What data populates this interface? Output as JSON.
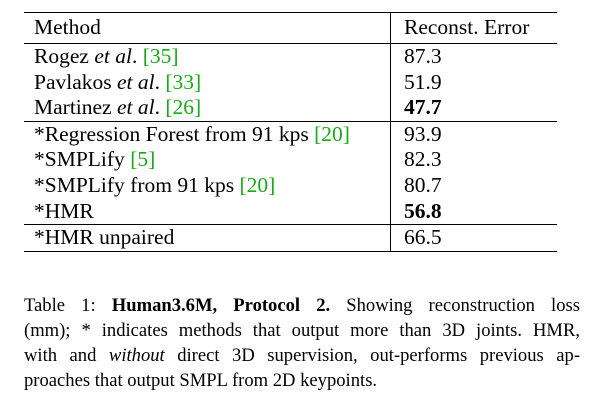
{
  "table": {
    "headers": [
      "Method",
      "Reconst. Error"
    ],
    "rows": [
      {
        "prefix": "Rogez ",
        "etal": "et al",
        "dot": ". ",
        "cite": "[35]",
        "error": "87.3",
        "bold": false
      },
      {
        "prefix": "Pavlakos ",
        "etal": "et al",
        "dot": ". ",
        "cite": "[33]",
        "error": "51.9",
        "bold": false
      },
      {
        "prefix": "Martinez ",
        "etal": "et al",
        "dot": ". ",
        "cite": "[26]",
        "error": "47.7",
        "bold": true
      },
      {
        "prefix": "*Regression Forest from 91 kps ",
        "etal": "",
        "dot": "",
        "cite": "[20]",
        "error": "93.9",
        "bold": false
      },
      {
        "prefix": "*SMPLify ",
        "etal": "",
        "dot": "",
        "cite": "[5]",
        "error": "82.3",
        "bold": false
      },
      {
        "prefix": "*SMPLify from 91 kps ",
        "etal": "",
        "dot": "",
        "cite": "[20]",
        "error": "80.7",
        "bold": false
      },
      {
        "prefix": "*HMR",
        "etal": "",
        "dot": "",
        "cite": "",
        "error": "56.8",
        "bold": true
      },
      {
        "prefix": "*HMR unpaired",
        "etal": "",
        "dot": "",
        "cite": "",
        "error": "66.5",
        "bold": false
      }
    ]
  },
  "caption": {
    "label": "Table 1: ",
    "bold_title": "Human3.6M, Protocol 2.",
    "line1_rest": " Showing reconstruction loss",
    "line2": "(mm); * indicates methods that output more than 3D joints. HMR,",
    "line3_a": "with and ",
    "line3_italic": "without",
    "line3_b": " direct 3D supervision, out-performs previous ap-",
    "line4": "proaches that output SMPL from 2D keypoints."
  },
  "colors": {
    "citation": "#18a818",
    "text": "#000000"
  }
}
